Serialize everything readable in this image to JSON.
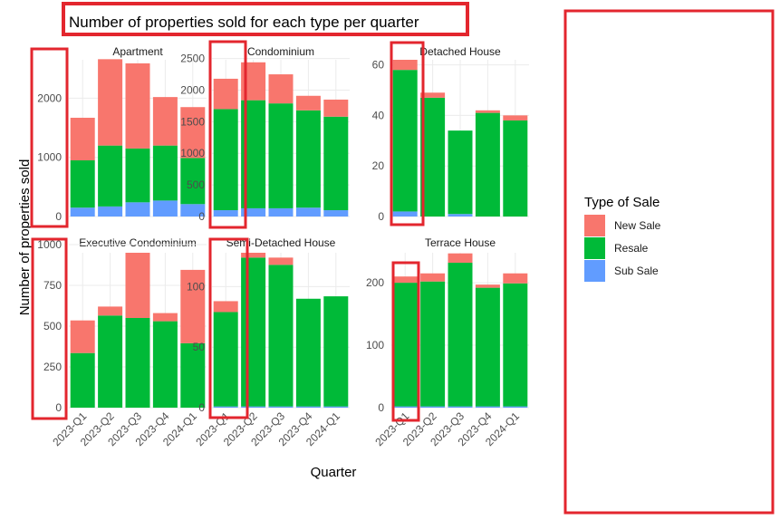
{
  "colors": {
    "highlight_box": "#e3262e",
    "grid": "#ebebeb",
    "new_sale": "#f8766d",
    "resale": "#00ba38",
    "sub_sale": "#619cff"
  },
  "chart_data": {
    "type": "bar",
    "stacked": true,
    "title": "Number of properties sold for each type per quarter",
    "xlabel": "Quarter",
    "ylabel": "Number of properties sold",
    "categories": [
      "2023-Q1",
      "2023-Q2",
      "2023-Q3",
      "2023-Q4",
      "2024-Q1"
    ],
    "legend": {
      "title": "Type of Sale",
      "position": "right",
      "entries": [
        "New Sale",
        "Resale",
        "Sub Sale"
      ]
    },
    "facets": [
      {
        "name": "Apartment",
        "ylim": [
          0,
          2650
        ],
        "yticks": [
          0,
          1000,
          2000
        ],
        "series": [
          {
            "name": "Sub Sale",
            "values": [
              150,
              170,
              240,
              270,
              210
            ]
          },
          {
            "name": "Resale",
            "values": [
              800,
              1030,
              910,
              930,
              780
            ]
          },
          {
            "name": "New Sale",
            "values": [
              720,
              1460,
              1440,
              820,
              860
            ]
          }
        ]
      },
      {
        "name": "Condominium",
        "ylim": [
          0,
          2480
        ],
        "yticks": [
          0,
          500,
          1000,
          1500,
          2000,
          2500
        ],
        "series": [
          {
            "name": "Sub Sale",
            "values": [
              100,
              130,
              130,
              140,
              100
            ]
          },
          {
            "name": "Resale",
            "values": [
              1600,
              1710,
              1660,
              1540,
              1480
            ]
          },
          {
            "name": "New Sale",
            "values": [
              480,
              600,
              460,
              230,
              270
            ]
          }
        ]
      },
      {
        "name": "Detached House",
        "ylim": [
          0,
          62
        ],
        "yticks": [
          0,
          20,
          40,
          60
        ],
        "series": [
          {
            "name": "Sub Sale",
            "values": [
              2,
              0,
              1,
              0,
              0
            ]
          },
          {
            "name": "Resale",
            "values": [
              56,
              47,
              33,
              41,
              38
            ]
          },
          {
            "name": "New Sale",
            "values": [
              4,
              2,
              0,
              1,
              2
            ]
          }
        ]
      },
      {
        "name": "Executive Condominium",
        "ylim": [
          0,
          950
        ],
        "yticks": [
          0,
          250,
          500,
          750,
          1000
        ],
        "series": [
          {
            "name": "Sub Sale",
            "values": [
              0,
              0,
              0,
              0,
              0
            ]
          },
          {
            "name": "Resale",
            "values": [
              335,
              565,
              550,
              530,
              395
            ]
          },
          {
            "name": "New Sale",
            "values": [
              200,
              55,
              400,
              50,
              450
            ]
          }
        ]
      },
      {
        "name": "Semi-Detached House",
        "ylim": [
          0,
          128
        ],
        "yticks": [
          0,
          50,
          100
        ],
        "series": [
          {
            "name": "Sub Sale",
            "values": [
              1,
              1,
              1,
              1,
              1
            ]
          },
          {
            "name": "Resale",
            "values": [
              78,
              123,
              117,
              89,
              91
            ]
          },
          {
            "name": "New Sale",
            "values": [
              9,
              4,
              6,
              0,
              0
            ]
          }
        ]
      },
      {
        "name": "Terrace House",
        "ylim": [
          0,
          248
        ],
        "yticks": [
          0,
          100,
          200
        ],
        "series": [
          {
            "name": "Sub Sale",
            "values": [
              2,
              2,
              2,
              2,
              2
            ]
          },
          {
            "name": "Resale",
            "values": [
              198,
              200,
              230,
              190,
              197
            ]
          },
          {
            "name": "New Sale",
            "values": [
              10,
              13,
              15,
              5,
              16
            ]
          }
        ]
      }
    ]
  }
}
